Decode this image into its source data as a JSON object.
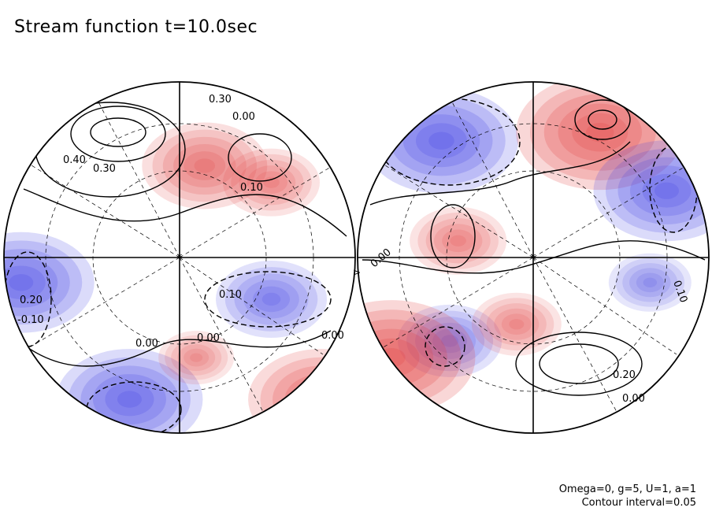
{
  "title": "Stream function t=10.0sec",
  "params": {
    "line1": "Omega=0, g=5, U=1, a=1",
    "line2": "Contour interval=0.05"
  },
  "colors": {
    "positive": "#e23a3a",
    "negative": "#3a3ae2",
    "background": "#ffffff",
    "line": "#000000"
  },
  "contour_labels": {
    "left": [
      "0.40",
      "0.30",
      "0.30",
      "0.00",
      "0.10",
      "-0.10",
      "0.00",
      "0.00",
      "0.10",
      "0.20",
      "0.00"
    ],
    "right": [
      "0.00",
      "0.10",
      "0.20",
      "0.00"
    ]
  },
  "blobs": {
    "left": [
      {
        "sign": 1,
        "lon": 0.15,
        "lat": 0.55,
        "amp": 0.55
      },
      {
        "sign": 1,
        "lon": 0.55,
        "lat": 0.45,
        "amp": 0.35
      },
      {
        "sign": 0,
        "lon": -0.35,
        "lat": 0.6,
        "amp": 0.2
      },
      {
        "sign": -1,
        "lon": 0.55,
        "lat": -0.25,
        "amp": 0.45
      },
      {
        "sign": -1,
        "lon": -0.3,
        "lat": -0.85,
        "amp": 0.7
      },
      {
        "sign": -1,
        "lon": -0.95,
        "lat": -0.15,
        "amp": 0.7
      },
      {
        "sign": 1,
        "lon": 0.85,
        "lat": -0.85,
        "amp": 0.7
      },
      {
        "sign": 1,
        "lon": 0.1,
        "lat": -0.6,
        "amp": 0.2
      }
    ],
    "right": [
      {
        "sign": -1,
        "lon": -0.55,
        "lat": 0.7,
        "amp": 0.75
      },
      {
        "sign": 1,
        "lon": 0.4,
        "lat": 0.75,
        "amp": 0.85
      },
      {
        "sign": -1,
        "lon": 0.8,
        "lat": 0.4,
        "amp": 0.7
      },
      {
        "sign": 1,
        "lon": -0.45,
        "lat": 0.1,
        "amp": 0.35
      },
      {
        "sign": -1,
        "lon": -0.5,
        "lat": -0.5,
        "amp": 0.4
      },
      {
        "sign": 1,
        "lon": -0.85,
        "lat": -0.6,
        "amp": 0.85
      },
      {
        "sign": 1,
        "lon": -0.1,
        "lat": -0.4,
        "amp": 0.3
      },
      {
        "sign": -1,
        "lon": 0.7,
        "lat": -0.15,
        "amp": 0.25
      }
    ]
  }
}
